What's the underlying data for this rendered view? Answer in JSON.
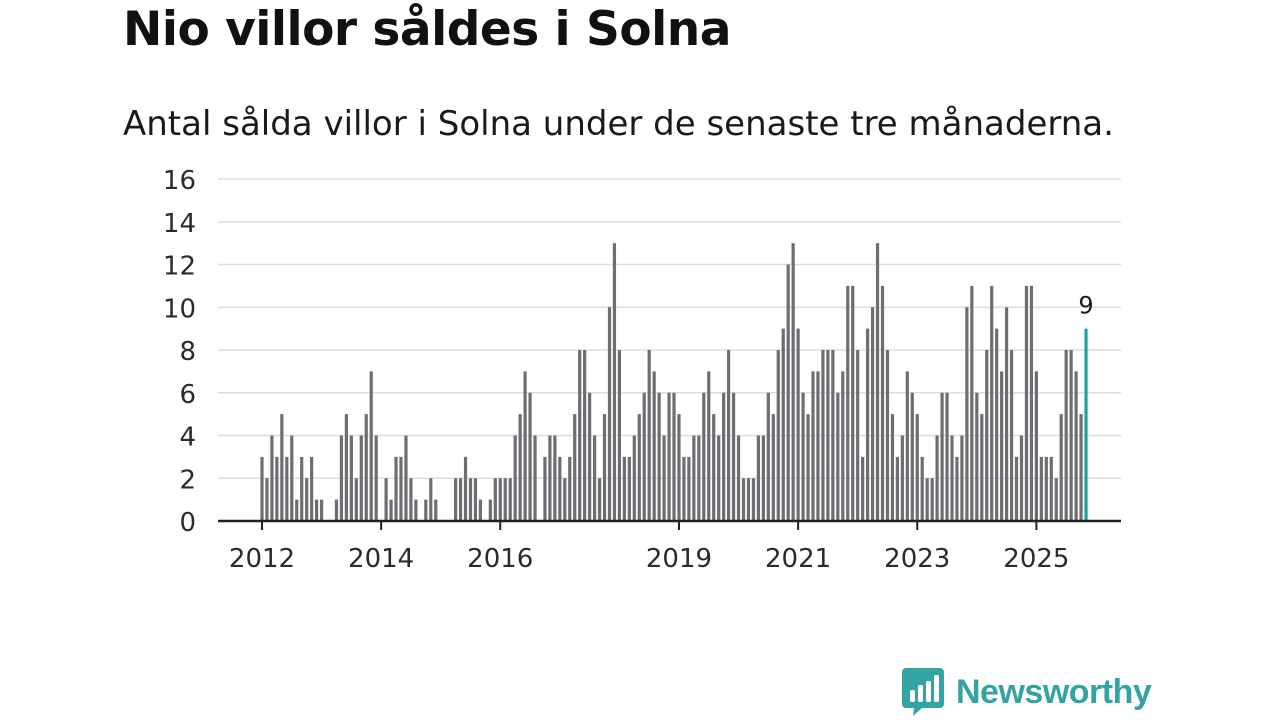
{
  "brand": {
    "name": "Newsworthy",
    "color": "#34a3a3"
  },
  "chart_data": {
    "type": "bar",
    "title": "Nio villor såldes i Solna",
    "subtitle": "Antal sålda villor i Solna under de senaste tre månaderna.",
    "xlabel": "",
    "ylabel": "",
    "ylim": [
      0,
      16
    ],
    "yticks": [
      0,
      2,
      4,
      6,
      8,
      10,
      12,
      14,
      16
    ],
    "xticks": [
      {
        "label": "2012",
        "index": 0
      },
      {
        "label": "2014",
        "index": 24
      },
      {
        "label": "2016",
        "index": 48
      },
      {
        "label": "2019",
        "index": 84
      },
      {
        "label": "2021",
        "index": 108
      },
      {
        "label": "2023",
        "index": 132
      },
      {
        "label": "2025",
        "index": 156
      }
    ],
    "grid": true,
    "bar_color": "#6d6d72",
    "highlight_color": "#1aa3a3",
    "highlight_label": "9",
    "values": [
      3,
      2,
      4,
      3,
      5,
      3,
      4,
      1,
      3,
      2,
      3,
      1,
      1,
      0,
      0,
      1,
      4,
      5,
      4,
      2,
      4,
      5,
      7,
      4,
      0,
      2,
      1,
      3,
      3,
      4,
      2,
      1,
      0,
      1,
      2,
      1,
      0,
      0,
      0,
      2,
      2,
      3,
      2,
      2,
      1,
      0,
      1,
      2,
      2,
      2,
      2,
      4,
      5,
      7,
      6,
      4,
      0,
      3,
      4,
      4,
      3,
      2,
      3,
      5,
      8,
      8,
      6,
      4,
      2,
      5,
      10,
      13,
      8,
      3,
      3,
      4,
      5,
      6,
      8,
      7,
      6,
      4,
      6,
      6,
      5,
      3,
      3,
      4,
      4,
      6,
      7,
      5,
      4,
      6,
      8,
      6,
      4,
      2,
      2,
      2,
      4,
      4,
      6,
      5,
      8,
      9,
      12,
      13,
      9,
      6,
      5,
      7,
      7,
      8,
      8,
      8,
      6,
      7,
      11,
      11,
      8,
      3,
      9,
      10,
      13,
      11,
      8,
      5,
      3,
      4,
      7,
      6,
      5,
      3,
      2,
      2,
      4,
      6,
      6,
      4,
      3,
      4,
      10,
      11,
      6,
      5,
      8,
      11,
      9,
      7,
      10,
      8,
      3,
      4,
      11,
      11,
      7,
      3,
      3,
      3,
      2,
      5,
      8,
      8,
      7,
      5,
      9
    ]
  }
}
